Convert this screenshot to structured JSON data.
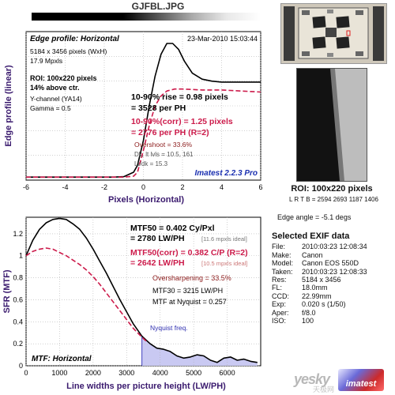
{
  "window": {
    "title": "GJFBL.JPG"
  },
  "chart_data": [
    {
      "type": "line",
      "title": "Edge profile: Horizontal",
      "date": "23-Mar-2010 15:03:44",
      "xlabel": "Pixels (Horizontal)",
      "ylabel": "Edge profile (linear)",
      "xlim": [
        -6,
        6
      ],
      "ylim": [
        0,
        1.5
      ],
      "xticks": [
        "-6",
        "-4",
        "-2",
        "0",
        "2",
        "4",
        "6"
      ],
      "info": [
        "5184 x 3456 pixels (WxH)",
        "17.9 Mpxls"
      ],
      "roi": [
        "ROI: 100x220 pixels",
        "14% above ctr."
      ],
      "channel": [
        "Y-channel  (YA14)",
        "Gamma = 0.5"
      ],
      "rise": [
        "10-90% rise = 0.98 pixels",
        "= 3528 per PH"
      ],
      "rise_corr": [
        "10-90%(corr) = 1.25 pixels",
        "= 2776 per PH  (R=2)"
      ],
      "stats": [
        "Overshoot = 33.6%",
        "Dk, lt lvls = 10.5, 161",
        "Lt/dk = 15.3"
      ],
      "brand": "Imatest 2.2.3 Pro",
      "series": [
        {
          "color": "#000000",
          "x": [
            -6,
            -4,
            -3,
            -2,
            -1.5,
            -1,
            -0.5,
            -0.3,
            0,
            0.3,
            0.6,
            0.9,
            1.2,
            1.5,
            1.8,
            2.1,
            2.5,
            3,
            3.5,
            4,
            5,
            6
          ],
          "y": [
            0.03,
            0.03,
            0.03,
            0.03,
            0.03,
            0.035,
            0.08,
            0.15,
            0.4,
            0.75,
            1.05,
            1.27,
            1.38,
            1.38,
            1.32,
            1.2,
            1.08,
            1.02,
            1.0,
            0.99,
            0.99,
            0.99
          ]
        },
        {
          "color": "#cc1a4a",
          "dash": true,
          "x": [
            -6,
            -4,
            -2,
            -1,
            -0.5,
            -0.3,
            0,
            0.3,
            0.6,
            0.9,
            1.2,
            1.6,
            2,
            3,
            4,
            5,
            6
          ],
          "y": [
            0.03,
            0.03,
            0.03,
            0.03,
            0.04,
            0.08,
            0.3,
            0.55,
            0.75,
            0.85,
            0.9,
            0.92,
            0.92,
            0.91,
            0.91,
            0.9,
            0.89
          ]
        }
      ]
    },
    {
      "type": "line",
      "title": "MTF: Horizontal",
      "xlabel": "Line widths per picture height (LW/PH)",
      "ylabel": "SFR (MTF)",
      "xlim": [
        0,
        7000
      ],
      "ylim": [
        0,
        1.35
      ],
      "xticks": [
        "0",
        "1000",
        "2000",
        "3000",
        "4000",
        "5000",
        "6000"
      ],
      "yticks": [
        "0",
        "0.2",
        "0.4",
        "0.6",
        "0.8",
        "1",
        "1.2"
      ],
      "mtf50": [
        "MTF50 = 0.402 Cy/Pxl",
        "= 2780 LW/PH"
      ],
      "mtf50_ideal": "[11.6 mpxls ideal]",
      "mtf50c": [
        "MTF50(corr) = 0.382 C/P  (R=2)",
        "= 2642 LW/PH"
      ],
      "mtf50c_ideal": "[10.5 mpxls ideal]",
      "oversharp": "Oversharpening = 33.5%",
      "mtf30": "MTF30 = 3215 LW/PH",
      "nyq_mtf": "MTF at Nyquist = 0.257",
      "nyquist_label": "Nyquist freq.",
      "nyquist": 3456,
      "series": [
        {
          "color": "#000000",
          "x": [
            0,
            200,
            400,
            600,
            800,
            1000,
            1200,
            1400,
            1600,
            1800,
            2000,
            2200,
            2400,
            2600,
            2800,
            3000,
            3200,
            3456,
            3700,
            3900,
            4100,
            4300,
            4500,
            4700,
            4900,
            5100,
            5300,
            5500,
            5700,
            5900,
            6100,
            6300,
            6500,
            6700,
            6900
          ],
          "y": [
            1.0,
            1.14,
            1.24,
            1.3,
            1.33,
            1.34,
            1.33,
            1.29,
            1.24,
            1.16,
            1.06,
            0.95,
            0.84,
            0.72,
            0.6,
            0.49,
            0.38,
            0.27,
            0.2,
            0.16,
            0.15,
            0.13,
            0.09,
            0.07,
            0.08,
            0.1,
            0.09,
            0.05,
            0.03,
            0.07,
            0.08,
            0.05,
            0.06,
            0.04,
            0.03
          ]
        },
        {
          "color": "#cc1a4a",
          "dash": true,
          "x": [
            0,
            200,
            400,
            600,
            800,
            1000,
            1200,
            1400,
            1600,
            1800,
            2000,
            2200,
            2400,
            2600,
            2800,
            3000,
            3200,
            3456,
            3600
          ],
          "y": [
            1.0,
            1.04,
            1.06,
            1.07,
            1.06,
            1.03,
            1.0,
            0.96,
            0.92,
            0.87,
            0.81,
            0.74,
            0.66,
            0.58,
            0.5,
            0.42,
            0.34,
            0.26,
            0.22
          ]
        }
      ]
    }
  ],
  "roi_panel": {
    "label": "ROI: 100x220 pixels",
    "lrtb": "L R T B = 2594 2693 1187 1406"
  },
  "edge_angle": "Edge angle = -5.1 degs",
  "exif": {
    "title": "Selected EXIF data",
    "rows": [
      {
        "k": "File:",
        "v": "2010:03:23 12:08:34"
      },
      {
        "k": "Make:",
        "v": "Canon"
      },
      {
        "k": "Model:",
        "v": "Canon EOS 550D"
      },
      {
        "k": "Taken:",
        "v": "2010:03:23 12:08:33"
      },
      {
        "k": "Res:",
        "v": "5184 x 3456"
      },
      {
        "k": "FL:",
        "v": "18.0mm"
      },
      {
        "k": "CCD:",
        "v": "22.99mm"
      },
      {
        "k": "Exp:",
        "v": "0.020 s  (1/50)"
      },
      {
        "k": "Aper:",
        "v": "f/8.0"
      },
      {
        "k": "ISO:",
        "v": "100"
      }
    ]
  },
  "watermark": {
    "site": "yesky",
    "cn": "天极网",
    "logo": "imatest"
  }
}
